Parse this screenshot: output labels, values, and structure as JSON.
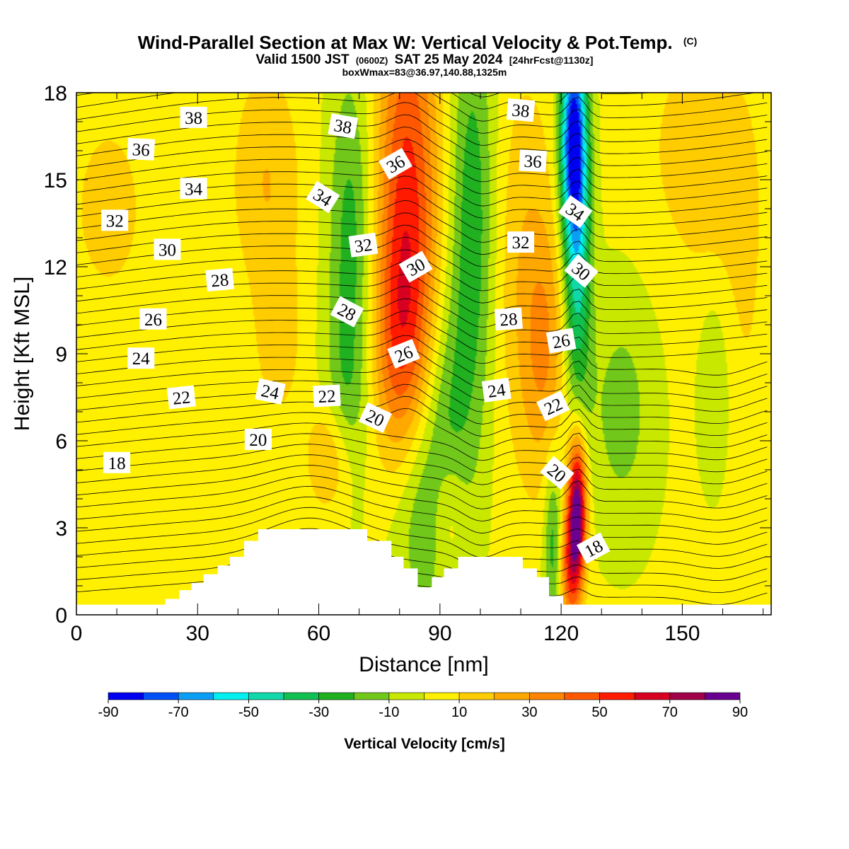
{
  "titles": {
    "main": "Wind-Parallel Section at Max W: Vertical Velocity & Pot.Temp.",
    "main_suffix": "(C)",
    "valid_a": "Valid 1500 JST",
    "valid_b": "(0600Z)",
    "valid_c": "SAT 25 May 2024",
    "valid_d": "[24hrFcst@1130z]",
    "box": "boxWmax=83@36.97,140.88,1325m"
  },
  "chart_data": {
    "type": "heatmap",
    "xlabel": "Distance [nm]",
    "ylabel": "Height [Kft MSL]",
    "xlim": [
      0,
      172
    ],
    "ylim": [
      0,
      18
    ],
    "x_ticks": [
      "0",
      "30",
      "60",
      "90",
      "120",
      "150"
    ],
    "x_tick_values": [
      0,
      30,
      60,
      90,
      120,
      150
    ],
    "y_ticks": [
      "0",
      "3",
      "6",
      "9",
      "12",
      "15",
      "18"
    ],
    "y_tick_values": [
      0,
      3,
      6,
      9,
      12,
      15,
      18
    ],
    "colorbar": {
      "title": "Vertical Velocity [cm/s]",
      "tick_labels": [
        "-90",
        "-70",
        "-50",
        "-30",
        "-10",
        "10",
        "30",
        "50",
        "70",
        "90"
      ],
      "bins": [
        {
          "from": -90,
          "to": -80,
          "color": "#0000f0"
        },
        {
          "from": -80,
          "to": -70,
          "color": "#0050f8"
        },
        {
          "from": -70,
          "to": -60,
          "color": "#0a9ef5"
        },
        {
          "from": -60,
          "to": -50,
          "color": "#00f0f0"
        },
        {
          "from": -50,
          "to": -40,
          "color": "#10d8a8"
        },
        {
          "from": -40,
          "to": -30,
          "color": "#10c050"
        },
        {
          "from": -30,
          "to": -20,
          "color": "#20b020"
        },
        {
          "from": -20,
          "to": -10,
          "color": "#72c81a"
        },
        {
          "from": -10,
          "to": 0,
          "color": "#c8e800"
        },
        {
          "from": 0,
          "to": 10,
          "color": "#fff000"
        },
        {
          "from": 10,
          "to": 20,
          "color": "#ffcc00"
        },
        {
          "from": 20,
          "to": 30,
          "color": "#ffa800"
        },
        {
          "from": 30,
          "to": 40,
          "color": "#ff8400"
        },
        {
          "from": 40,
          "to": 50,
          "color": "#ff5800"
        },
        {
          "from": 50,
          "to": 60,
          "color": "#ff1a00"
        },
        {
          "from": 60,
          "to": 70,
          "color": "#d80020"
        },
        {
          "from": 70,
          "to": 80,
          "color": "#a00048"
        },
        {
          "from": 80,
          "to": 90,
          "color": "#6a0090"
        }
      ]
    },
    "velocity_features": [
      {
        "x": 8,
        "z": 14,
        "sx": 10,
        "sz": 3.5,
        "w": 10
      },
      {
        "x": 47,
        "z": 15,
        "sx": 6,
        "sz": 2.8,
        "w": 18
      },
      {
        "x": 50,
        "z": 9.5,
        "sx": 4,
        "sz": 2,
        "w": 14
      },
      {
        "x": 63,
        "z": 5.5,
        "sx": 4,
        "sz": 1.4,
        "w": 24
      },
      {
        "x": 68,
        "z": 12.5,
        "sx": 4,
        "sz": 4.5,
        "w": -28
      },
      {
        "x": 66,
        "z": 7,
        "sx": 4,
        "sz": 2,
        "w": -12
      },
      {
        "x": 82,
        "z": 14.5,
        "sx": 5.5,
        "sz": 5.5,
        "w": 50
      },
      {
        "x": 80,
        "z": 9,
        "sx": 5,
        "sz": 3,
        "w": 28
      },
      {
        "x": 86,
        "z": 4,
        "sx": 6,
        "sz": 3,
        "w": -26
      },
      {
        "x": 92,
        "z": 7.5,
        "sx": 4,
        "sz": 3,
        "w": -14
      },
      {
        "x": 98,
        "z": 13.5,
        "sx": 4,
        "sz": 5.5,
        "w": -30
      },
      {
        "x": 92,
        "z": 3.5,
        "sx": 3,
        "sz": 1.6,
        "w": 18
      },
      {
        "x": 111,
        "z": 12,
        "sx": 6,
        "sz": 5,
        "w": 16
      },
      {
        "x": 116,
        "z": 9,
        "sx": 4,
        "sz": 3,
        "w": 22
      },
      {
        "x": 123,
        "z": 16.5,
        "sx": 2.3,
        "sz": 2.5,
        "w": -80
      },
      {
        "x": 124,
        "z": 12,
        "sx": 2.4,
        "sz": 3.8,
        "w": -45
      },
      {
        "x": 124,
        "z": 3.6,
        "sx": 1.6,
        "sz": 1.8,
        "w": 88
      },
      {
        "x": 122,
        "z": 1.6,
        "sx": 1.7,
        "sz": 1.5,
        "w": 40
      },
      {
        "x": 118,
        "z": 2.5,
        "sx": 1.6,
        "sz": 2.2,
        "w": -28
      },
      {
        "x": 135,
        "z": 7,
        "sx": 6,
        "sz": 3,
        "w": -16
      },
      {
        "x": 158,
        "z": 8,
        "sx": 3,
        "sz": 2.5,
        "w": -16
      },
      {
        "x": 155,
        "z": 16,
        "sx": 10,
        "sz": 3,
        "w": 14
      },
      {
        "x": 164,
        "z": 10,
        "sx": 7,
        "sz": 4,
        "w": 8
      }
    ],
    "terrain": {
      "x": [
        0,
        22,
        22,
        25.5,
        25.5,
        28.5,
        28.5,
        31.5,
        31.5,
        35,
        35,
        38,
        38,
        41.5,
        41.5,
        45,
        45,
        72,
        72,
        78,
        78,
        81,
        81,
        84.5,
        84.5,
        88,
        88,
        91,
        91,
        94.5,
        94.5,
        110.5,
        110.5,
        114,
        114,
        117,
        117,
        120.5,
        120.5,
        172
      ],
      "z": [
        0.35,
        0.35,
        0.55,
        0.55,
        0.85,
        0.85,
        1.1,
        1.1,
        1.4,
        1.4,
        1.7,
        1.7,
        2.0,
        2.0,
        2.55,
        2.55,
        2.95,
        2.95,
        2.55,
        2.55,
        2.0,
        2.0,
        1.6,
        1.6,
        0.95,
        0.95,
        1.3,
        1.3,
        1.6,
        1.6,
        2.0,
        2.0,
        1.6,
        1.6,
        1.3,
        1.3,
        0.65,
        0.65,
        0.35,
        0.35
      ]
    },
    "contour_labels": [
      {
        "text": "38",
        "x": 29,
        "z": 17.15,
        "angle": 0
      },
      {
        "text": "36",
        "x": 16,
        "z": 16.05,
        "angle": 3
      },
      {
        "text": "34",
        "x": 29,
        "z": 14.7,
        "angle": 0
      },
      {
        "text": "32",
        "x": 9.5,
        "z": 13.6,
        "angle": 0
      },
      {
        "text": "30",
        "x": 22.5,
        "z": 12.6,
        "angle": 0
      },
      {
        "text": "28",
        "x": 35.5,
        "z": 11.55,
        "angle": -5
      },
      {
        "text": "26",
        "x": 19,
        "z": 10.2,
        "angle": 0
      },
      {
        "text": "24",
        "x": 16,
        "z": 8.85,
        "angle": 0
      },
      {
        "text": "22",
        "x": 26,
        "z": 7.5,
        "angle": -6
      },
      {
        "text": "20",
        "x": 45,
        "z": 6.05,
        "angle": 0
      },
      {
        "text": "18",
        "x": 10,
        "z": 5.25,
        "angle": 0
      },
      {
        "text": "38",
        "x": 66,
        "z": 16.85,
        "angle": 10
      },
      {
        "text": "36",
        "x": 79,
        "z": 15.55,
        "angle": -30
      },
      {
        "text": "34",
        "x": 61,
        "z": 14.4,
        "angle": 32
      },
      {
        "text": "32",
        "x": 71,
        "z": 12.75,
        "angle": -8
      },
      {
        "text": "30",
        "x": 84,
        "z": 12.0,
        "angle": -30
      },
      {
        "text": "28",
        "x": 67,
        "z": 10.45,
        "angle": 28
      },
      {
        "text": "26",
        "x": 81,
        "z": 9.0,
        "angle": -22
      },
      {
        "text": "24",
        "x": 48,
        "z": 7.7,
        "angle": 12
      },
      {
        "text": "22",
        "x": 62,
        "z": 7.55,
        "angle": -3
      },
      {
        "text": "20",
        "x": 74,
        "z": 6.8,
        "angle": 25
      },
      {
        "text": "38",
        "x": 110,
        "z": 17.4,
        "angle": 5
      },
      {
        "text": "36",
        "x": 113,
        "z": 15.65,
        "angle": 3
      },
      {
        "text": "34",
        "x": 123.5,
        "z": 13.9,
        "angle": 35
      },
      {
        "text": "32",
        "x": 110,
        "z": 12.85,
        "angle": 0
      },
      {
        "text": "30",
        "x": 125,
        "z": 11.85,
        "angle": 40
      },
      {
        "text": "28",
        "x": 107,
        "z": 10.2,
        "angle": -4
      },
      {
        "text": "26",
        "x": 120,
        "z": 9.45,
        "angle": -10
      },
      {
        "text": "24",
        "x": 104,
        "z": 7.75,
        "angle": -8
      },
      {
        "text": "22",
        "x": 118,
        "z": 7.2,
        "angle": -25
      },
      {
        "text": "20",
        "x": 119,
        "z": 4.9,
        "angle": 40
      },
      {
        "text": "18",
        "x": 128,
        "z": 2.3,
        "angle": -28
      }
    ]
  }
}
